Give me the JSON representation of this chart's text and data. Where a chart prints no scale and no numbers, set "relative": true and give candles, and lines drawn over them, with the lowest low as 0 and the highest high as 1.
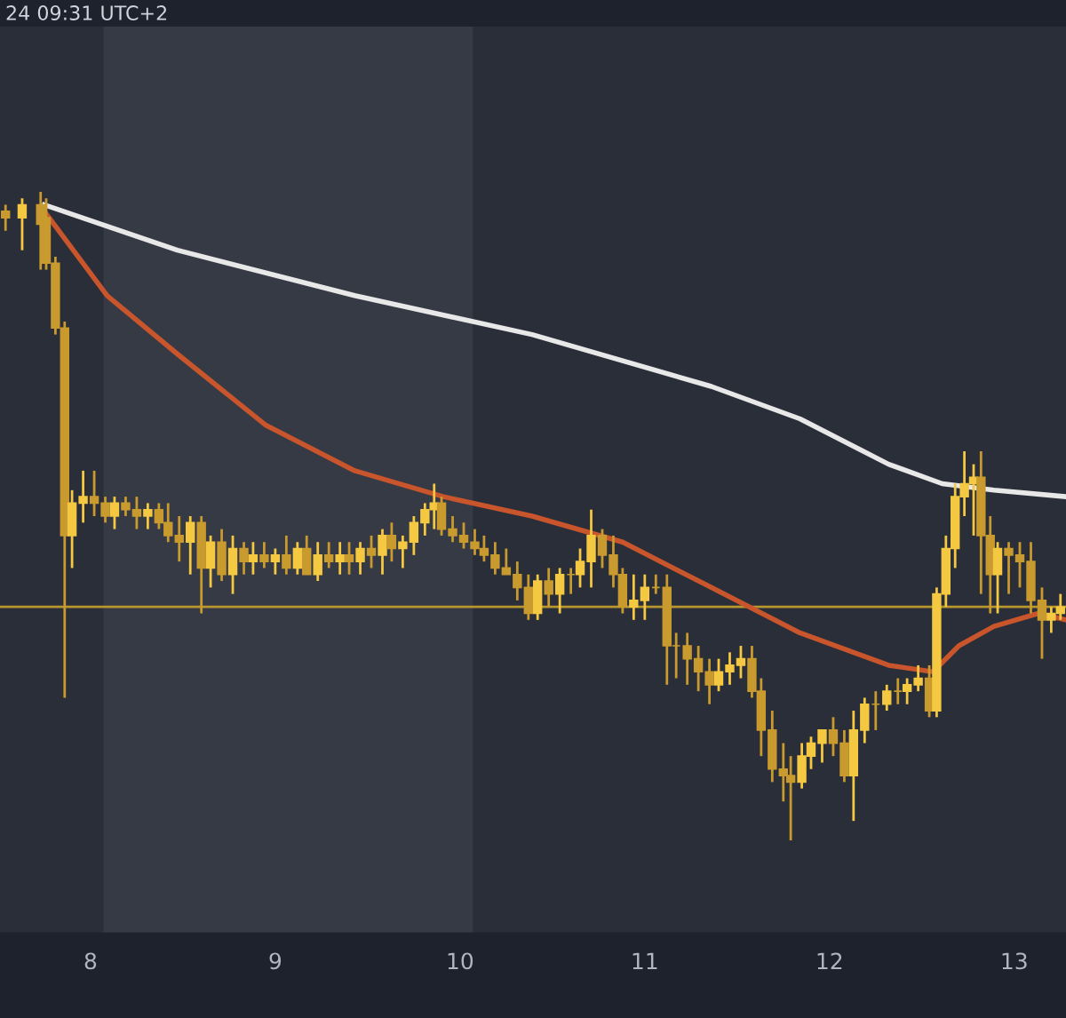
{
  "chart_data": {
    "type": "candlestick",
    "relative": true,
    "colors": [
      "#c99a2e",
      "#f5c842",
      "#c99a2e",
      "#c99a2e",
      "#c99a2e",
      "#c99a2e",
      "#f5c842",
      "#f5c842",
      "#c99a2e",
      "#c99a2e",
      "#f5c842",
      "#c99a2e",
      "#c99a2e",
      "#f5c842",
      "#c99a2e",
      "#c99a2e",
      "#c99a2e",
      "#f5c842",
      "#c99a2e",
      "#f5c842",
      "#c99a2e",
      "#f5c842",
      "#c99a2e",
      "#f5c842",
      "#c99a2e",
      "#f5c842",
      "#c99a2e",
      "#f5c842",
      "#c99a2e",
      "#f5c842",
      "#c99a2e",
      "#f5c842",
      "#c99a2e",
      "#f5c842",
      "#c99a2e",
      "#f5c842",
      "#c99a2e",
      "#f5c842",
      "#f5c842",
      "#f5c842",
      "#f5c842",
      "#c99a2e",
      "#c99a2e",
      "#c99a2e",
      "#c99a2e",
      "#c99a2e",
      "#c99a2e",
      "#c99a2e",
      "#c99a2e",
      "#c99a2e",
      "#f5c842",
      "#c99a2e",
      "#f5c842",
      "#c99a2e",
      "#f5c842",
      "#f5c842",
      "#c99a2e",
      "#c99a2e",
      "#c99a2e",
      "#f5c842",
      "#f5c842",
      "#c99a2e",
      "#c99a2e",
      "#c99a2e",
      "#c99a2e",
      "#c99a2e",
      "#c99a2e",
      "#f5c842",
      "#f5c842",
      "#f5c842",
      "#c99a2e",
      "#c99a2e",
      "#c99a2e",
      "#c99a2e",
      "#c99a2e",
      "#f5c842",
      "#f5c842",
      "#f5c842",
      "#c99a2e",
      "#c99a2e",
      "#f5c842",
      "#f5c842",
      "#c99a2e",
      "#f5c842",
      "#c99a2e",
      "#f5c842",
      "#f5c842",
      "#c99a2e",
      "#f5c842",
      "#f5c842",
      "#f5c842",
      "#f5c842",
      "#f5c842",
      "#c99a2e",
      "#c99a2e",
      "#f5c842",
      "#c99a2e",
      "#c99a2e",
      "#c99a2e",
      "#c99a2e",
      "#f5c842",
      "#f5c842"
    ],
    "annotations": [
      "24 09:31 UTC+2"
    ],
    "x": [
      7.54,
      7.63,
      7.73,
      7.76,
      7.81,
      7.86,
      7.9,
      7.96,
      8.02,
      8.08,
      8.13,
      8.19,
      8.25,
      8.31,
      8.37,
      8.42,
      8.48,
      8.54,
      8.6,
      8.65,
      8.71,
      8.77,
      8.83,
      8.88,
      8.94,
      9.0,
      9.06,
      9.12,
      9.17,
      9.23,
      9.29,
      9.35,
      9.4,
      9.46,
      9.52,
      9.58,
      9.63,
      9.69,
      9.75,
      9.81,
      9.86,
      9.9,
      9.96,
      10.02,
      10.08,
      10.13,
      10.19,
      10.25,
      10.31,
      10.37,
      10.42,
      10.48,
      10.54,
      10.6,
      10.65,
      10.71,
      10.77,
      10.83,
      10.88,
      10.94,
      11.0,
      11.06,
      11.12,
      11.17,
      11.23,
      11.29,
      11.35,
      11.4,
      11.46,
      11.52,
      11.58,
      11.63,
      11.69,
      11.75,
      11.79,
      11.85,
      11.9,
      11.96,
      12.02,
      12.08,
      12.13,
      12.19,
      12.25,
      12.31,
      12.37,
      12.42,
      12.48,
      12.54,
      12.58,
      12.63,
      12.68,
      12.73,
      12.78,
      12.82,
      12.87,
      12.91,
      12.97,
      13.03,
      13.09,
      13.15,
      13.2,
      13.25
    ],
    "ohlc": [
      [
        0.97,
        0.98,
        0.94,
        0.96
      ],
      [
        0.96,
        0.99,
        0.91,
        0.98
      ],
      [
        0.98,
        1.0,
        0.88,
        0.95
      ],
      [
        0.96,
        0.99,
        0.88,
        0.89
      ],
      [
        0.89,
        0.9,
        0.78,
        0.79
      ],
      [
        0.79,
        0.8,
        0.22,
        0.47
      ],
      [
        0.47,
        0.54,
        0.42,
        0.52
      ],
      [
        0.52,
        0.57,
        0.49,
        0.53
      ],
      [
        0.53,
        0.57,
        0.5,
        0.52
      ],
      [
        0.52,
        0.53,
        0.49,
        0.5
      ],
      [
        0.5,
        0.53,
        0.48,
        0.52
      ],
      [
        0.52,
        0.53,
        0.5,
        0.51
      ],
      [
        0.51,
        0.53,
        0.48,
        0.5
      ],
      [
        0.5,
        0.52,
        0.48,
        0.51
      ],
      [
        0.51,
        0.52,
        0.48,
        0.49
      ],
      [
        0.49,
        0.52,
        0.46,
        0.47
      ],
      [
        0.47,
        0.5,
        0.43,
        0.46
      ],
      [
        0.46,
        0.5,
        0.41,
        0.49
      ],
      [
        0.49,
        0.5,
        0.35,
        0.42
      ],
      [
        0.42,
        0.47,
        0.39,
        0.46
      ],
      [
        0.46,
        0.48,
        0.4,
        0.41
      ],
      [
        0.41,
        0.47,
        0.38,
        0.45
      ],
      [
        0.45,
        0.46,
        0.41,
        0.43
      ],
      [
        0.43,
        0.46,
        0.41,
        0.44
      ],
      [
        0.44,
        0.46,
        0.42,
        0.43
      ],
      [
        0.43,
        0.45,
        0.41,
        0.44
      ],
      [
        0.44,
        0.47,
        0.41,
        0.42
      ],
      [
        0.42,
        0.46,
        0.41,
        0.45
      ],
      [
        0.45,
        0.47,
        0.41,
        0.41
      ],
      [
        0.41,
        0.46,
        0.4,
        0.44
      ],
      [
        0.44,
        0.46,
        0.42,
        0.43
      ],
      [
        0.43,
        0.46,
        0.41,
        0.44
      ],
      [
        0.44,
        0.46,
        0.41,
        0.43
      ],
      [
        0.43,
        0.46,
        0.41,
        0.45
      ],
      [
        0.45,
        0.47,
        0.42,
        0.44
      ],
      [
        0.44,
        0.48,
        0.41,
        0.47
      ],
      [
        0.47,
        0.49,
        0.43,
        0.45
      ],
      [
        0.45,
        0.47,
        0.42,
        0.46
      ],
      [
        0.46,
        0.5,
        0.44,
        0.49
      ],
      [
        0.49,
        0.52,
        0.47,
        0.51
      ],
      [
        0.51,
        0.55,
        0.48,
        0.52
      ],
      [
        0.52,
        0.53,
        0.47,
        0.48
      ],
      [
        0.48,
        0.5,
        0.46,
        0.47
      ],
      [
        0.47,
        0.49,
        0.45,
        0.46
      ],
      [
        0.46,
        0.48,
        0.44,
        0.45
      ],
      [
        0.45,
        0.47,
        0.43,
        0.44
      ],
      [
        0.44,
        0.46,
        0.41,
        0.42
      ],
      [
        0.42,
        0.45,
        0.41,
        0.41
      ],
      [
        0.41,
        0.43,
        0.37,
        0.39
      ],
      [
        0.39,
        0.41,
        0.34,
        0.35
      ],
      [
        0.35,
        0.41,
        0.34,
        0.4
      ],
      [
        0.4,
        0.42,
        0.36,
        0.38
      ],
      [
        0.38,
        0.42,
        0.35,
        0.41
      ],
      [
        0.41,
        0.42,
        0.38,
        0.41
      ],
      [
        0.41,
        0.45,
        0.39,
        0.43
      ],
      [
        0.43,
        0.51,
        0.39,
        0.47
      ],
      [
        0.47,
        0.48,
        0.42,
        0.44
      ],
      [
        0.44,
        0.47,
        0.39,
        0.41
      ],
      [
        0.41,
        0.42,
        0.35,
        0.36
      ],
      [
        0.36,
        0.41,
        0.34,
        0.37
      ],
      [
        0.37,
        0.41,
        0.34,
        0.39
      ],
      [
        0.39,
        0.41,
        0.38,
        0.39
      ],
      [
        0.39,
        0.41,
        0.24,
        0.3
      ],
      [
        0.3,
        0.32,
        0.25,
        0.3
      ],
      [
        0.3,
        0.32,
        0.24,
        0.28
      ],
      [
        0.28,
        0.3,
        0.23,
        0.26
      ],
      [
        0.26,
        0.28,
        0.21,
        0.24
      ],
      [
        0.24,
        0.28,
        0.23,
        0.26
      ],
      [
        0.26,
        0.29,
        0.24,
        0.27
      ],
      [
        0.27,
        0.3,
        0.25,
        0.28
      ],
      [
        0.28,
        0.3,
        0.22,
        0.23
      ],
      [
        0.23,
        0.25,
        0.13,
        0.17
      ],
      [
        0.17,
        0.2,
        0.09,
        0.11
      ],
      [
        0.11,
        0.15,
        0.06,
        0.1
      ],
      [
        0.1,
        0.13,
        0.0,
        0.09
      ],
      [
        0.09,
        0.15,
        0.08,
        0.13
      ],
      [
        0.13,
        0.16,
        0.11,
        0.15
      ],
      [
        0.15,
        0.17,
        0.12,
        0.17
      ],
      [
        0.17,
        0.19,
        0.13,
        0.15
      ],
      [
        0.15,
        0.17,
        0.09,
        0.1
      ],
      [
        0.1,
        0.2,
        0.03,
        0.17
      ],
      [
        0.17,
        0.22,
        0.15,
        0.21
      ],
      [
        0.21,
        0.23,
        0.17,
        0.21
      ],
      [
        0.21,
        0.24,
        0.2,
        0.23
      ],
      [
        0.23,
        0.25,
        0.21,
        0.23
      ],
      [
        0.23,
        0.25,
        0.21,
        0.24
      ],
      [
        0.24,
        0.27,
        0.23,
        0.25
      ],
      [
        0.25,
        0.27,
        0.19,
        0.2
      ],
      [
        0.2,
        0.39,
        0.19,
        0.38
      ],
      [
        0.38,
        0.47,
        0.36,
        0.45
      ],
      [
        0.45,
        0.55,
        0.42,
        0.53
      ],
      [
        0.53,
        0.6,
        0.5,
        0.55
      ],
      [
        0.55,
        0.58,
        0.47,
        0.56
      ],
      [
        0.56,
        0.6,
        0.38,
        0.47
      ],
      [
        0.47,
        0.5,
        0.35,
        0.41
      ],
      [
        0.41,
        0.46,
        0.35,
        0.45
      ],
      [
        0.45,
        0.46,
        0.38,
        0.44
      ],
      [
        0.44,
        0.46,
        0.39,
        0.43
      ],
      [
        0.43,
        0.46,
        0.35,
        0.37
      ],
      [
        0.37,
        0.39,
        0.28,
        0.34
      ],
      [
        0.34,
        0.36,
        0.32,
        0.35
      ],
      [
        0.35,
        0.38,
        0.34,
        0.36
      ]
    ],
    "series": [
      {
        "type": "line",
        "color": "#c8552b",
        "x": [
          7.75,
          8.09,
          8.47,
          8.95,
          9.43,
          9.91,
          10.39,
          10.88,
          11.36,
          11.84,
          12.32,
          12.56,
          12.7,
          12.89,
          13.13,
          13.28
        ],
        "values": [
          0.97,
          0.84,
          0.75,
          0.64,
          0.57,
          0.53,
          0.5,
          0.46,
          0.39,
          0.32,
          0.27,
          0.26,
          0.3,
          0.33,
          0.35,
          0.34
        ]
      },
      {
        "type": "line",
        "color": "#e8e8e8",
        "x": [
          7.75,
          8.47,
          9.43,
          10.39,
          11.36,
          11.84,
          12.32,
          12.61,
          12.89,
          13.28
        ],
        "values": [
          0.98,
          0.91,
          0.84,
          0.78,
          0.7,
          0.65,
          0.58,
          0.55,
          0.54,
          0.53
        ]
      }
    ],
    "xlim": [
      7.51,
      13.28
    ],
    "xticks": [
      8,
      9,
      10,
      11,
      12,
      13
    ],
    "bands": [
      {
        "axis": "x",
        "from": 8.07,
        "to": 10.07,
        "color": "#363a45"
      }
    ],
    "ref_lines": [
      {
        "axis": "y",
        "value": 0.36,
        "color": "#b8962e"
      }
    ],
    "grid": false,
    "tick_labels": "x"
  }
}
